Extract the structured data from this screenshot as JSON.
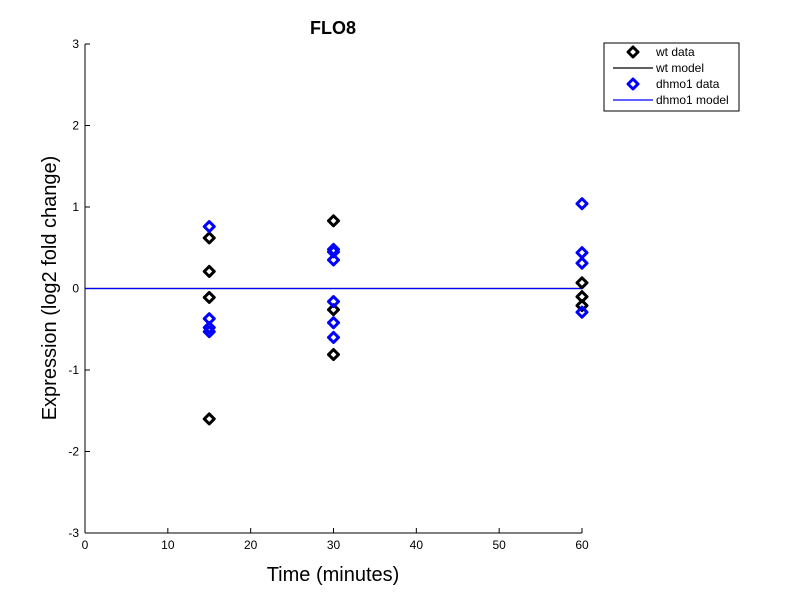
{
  "chart_data": {
    "type": "scatter",
    "title": "FLO8",
    "xlabel": "Time (minutes)",
    "ylabel": "Expression (log2 fold change)",
    "xlim": [
      0,
      60
    ],
    "ylim": [
      -3,
      3
    ],
    "xticks": [
      0,
      10,
      20,
      30,
      40,
      50,
      60
    ],
    "yticks": [
      -3,
      -2,
      -1,
      0,
      1,
      2,
      3
    ],
    "grid": false,
    "legend_position": "top-right",
    "series": [
      {
        "name": "wt data",
        "kind": "markers",
        "color": "#000000",
        "x": [
          15,
          15,
          15,
          15,
          30,
          30,
          30,
          60,
          60,
          60
        ],
        "y": [
          0.62,
          0.21,
          -0.11,
          -1.6,
          0.83,
          -0.26,
          -0.81,
          0.07,
          -0.1,
          -0.21
        ]
      },
      {
        "name": "wt model",
        "kind": "line",
        "color": "#000000",
        "x": [
          0,
          60
        ],
        "y": [
          0,
          0
        ]
      },
      {
        "name": "dhmo1 data",
        "kind": "markers",
        "color": "#0000ff",
        "x": [
          15,
          15,
          15,
          15,
          30,
          30,
          30,
          30,
          30,
          30,
          60,
          60,
          60,
          60
        ],
        "y": [
          0.76,
          -0.37,
          -0.48,
          -0.53,
          0.48,
          0.45,
          0.35,
          -0.16,
          -0.42,
          -0.6,
          1.04,
          0.44,
          0.31,
          -0.29
        ]
      },
      {
        "name": "dhmo1 model",
        "kind": "line",
        "color": "#0000ff",
        "x": [
          0,
          60
        ],
        "y": [
          0,
          0
        ]
      }
    ]
  }
}
